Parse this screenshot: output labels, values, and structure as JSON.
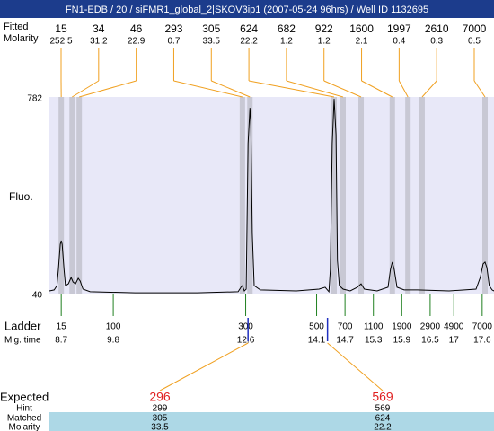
{
  "title": "FN1-EDB / 20 / siFMR1_global_2|SKOV3ip1 (2007-05-24 96hrs) / Well ID 1132695",
  "chart_data": {
    "type": "line",
    "y_label": "Fluo.",
    "ylim": [
      40,
      782
    ],
    "yticks": [
      40,
      782
    ],
    "xlim": [
      8.45,
      17.85
    ],
    "peaks": {
      "fitted_label": "Fitted",
      "molarity_label": "Molarity",
      "times": [
        8.7,
        8.93,
        9.08,
        12.53,
        12.69,
        14.47,
        14.66,
        15.04,
        15.7,
        16.03,
        16.33,
        17.66
      ],
      "fitted": [
        15,
        34,
        46,
        293,
        305,
        624,
        682,
        922,
        1600,
        1997,
        2610,
        7000
      ],
      "molarity": [
        252.5,
        31.2,
        22.9,
        0.7,
        33.5,
        22.2,
        1.2,
        1.2,
        2.1,
        0.4,
        0.3,
        0.5
      ]
    },
    "ladder": {
      "label": "Ladder",
      "time_label": "Mig. time",
      "sizes": [
        15,
        100,
        300,
        500,
        700,
        1100,
        1900,
        2900,
        4900,
        7000
      ],
      "times": [
        8.7,
        9.8,
        12.6,
        14.1,
        14.7,
        15.3,
        15.9,
        16.5,
        17,
        17.6
      ]
    },
    "trace": {
      "color": "#000000",
      "x": [
        8.45,
        8.55,
        8.61,
        8.64,
        8.68,
        8.7,
        8.72,
        8.76,
        8.79,
        8.85,
        8.91,
        8.95,
        9.0,
        9.06,
        9.1,
        9.16,
        9.31,
        10.26,
        11.58,
        12.44,
        12.5,
        12.53,
        12.57,
        12.61,
        12.65,
        12.69,
        12.71,
        12.74,
        12.78,
        12.91,
        13.67,
        14.15,
        14.28,
        14.36,
        14.39,
        14.43,
        14.47,
        14.51,
        14.54,
        14.58,
        14.66,
        14.81,
        14.96,
        15.04,
        15.11,
        15.38,
        15.61,
        15.66,
        15.7,
        15.74,
        15.8,
        15.95,
        16.23,
        16.9,
        17.47,
        17.56,
        17.62,
        17.66,
        17.7,
        17.75,
        17.81,
        17.85
      ],
      "y": [
        50,
        54,
        70,
        131,
        226,
        240,
        226,
        131,
        70,
        77,
        101,
        84,
        77,
        98,
        88,
        57,
        47,
        43,
        43,
        47,
        64,
        70,
        50,
        57,
        606,
        741,
        673,
        267,
        70,
        54,
        50,
        57,
        64,
        47,
        131,
        606,
        775,
        640,
        165,
        70,
        57,
        50,
        64,
        77,
        57,
        50,
        64,
        131,
        159,
        131,
        64,
        54,
        54,
        50,
        57,
        101,
        152,
        159,
        138,
        70,
        54,
        50
      ]
    },
    "expected": {
      "label": "Expected",
      "hint_label": "Hint",
      "matched_label": "Matched",
      "molarity_label": "Molarity",
      "times": [
        12.65,
        14.33
      ],
      "values": [
        296,
        569
      ],
      "hint": [
        299,
        569
      ],
      "matched": [
        305,
        624
      ],
      "molarity": [
        33.5,
        22.2
      ]
    }
  }
}
